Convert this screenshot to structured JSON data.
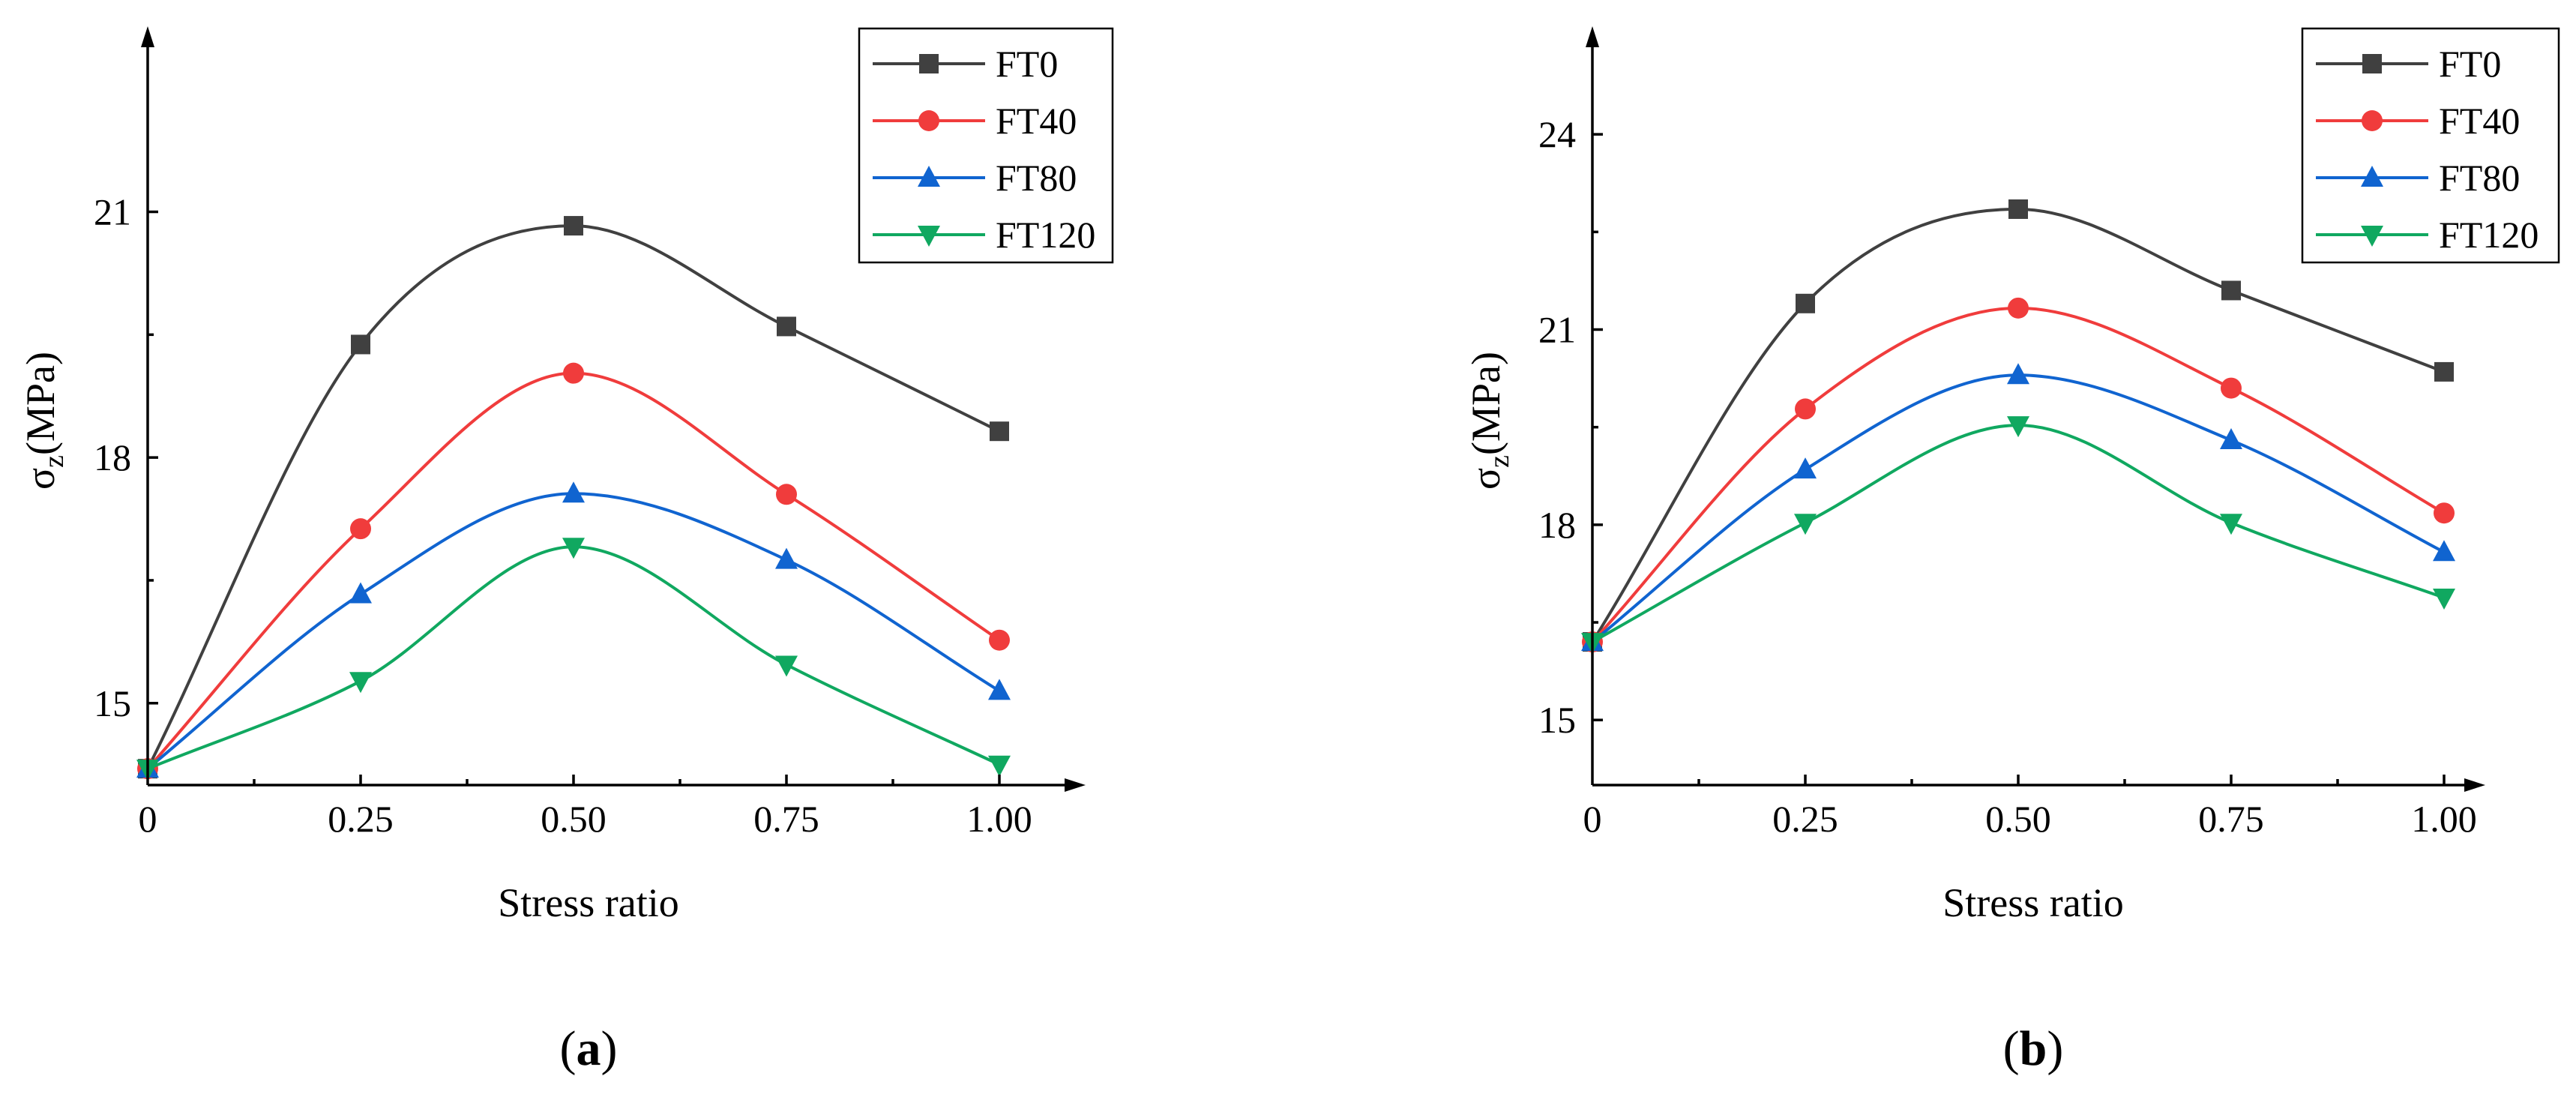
{
  "chart_data": [
    {
      "type": "line",
      "panel_label_open": "(",
      "panel_label_letter": "a",
      "panel_label_close": ")",
      "xlabel": "Stress ratio",
      "ylabel_main": "σ",
      "ylabel_sub": "z",
      "ylabel_unit": "(MPa)",
      "x": [
        0,
        0.25,
        0.5,
        0.75,
        1.0
      ],
      "xtick_labels": [
        "0",
        "0.25",
        "0.50",
        "0.75",
        "1.00"
      ],
      "yticks": [
        15,
        18,
        21
      ],
      "ylim": [
        14.0,
        22.9
      ],
      "xlim": [
        0,
        1.1
      ],
      "legend_position": "top-right",
      "series": [
        {
          "name": "FT0",
          "marker": "square",
          "color": "#404040",
          "values": [
            14.2,
            19.38,
            20.83,
            19.6,
            18.32
          ]
        },
        {
          "name": "FT40",
          "marker": "circle",
          "color": "#f03c3c",
          "values": [
            14.2,
            17.13,
            19.03,
            17.55,
            15.77
          ]
        },
        {
          "name": "FT80",
          "marker": "triangle-up",
          "color": "#1064d0",
          "values": [
            14.2,
            16.33,
            17.56,
            16.75,
            15.15
          ]
        },
        {
          "name": "FT120",
          "marker": "triangle-down",
          "color": "#10a860",
          "values": [
            14.2,
            15.27,
            16.91,
            15.47,
            14.25
          ]
        }
      ]
    },
    {
      "type": "line",
      "panel_label_open": "(",
      "panel_label_letter": "b",
      "panel_label_close": ")",
      "xlabel": "Stress ratio",
      "ylabel_main": "σ",
      "ylabel_sub": "z",
      "ylabel_unit": "(MPa)",
      "x": [
        0,
        0.25,
        0.5,
        0.75,
        1.0
      ],
      "xtick_labels": [
        "0",
        "0.25",
        "0.50",
        "0.75",
        "1.00"
      ],
      "yticks": [
        15,
        18,
        21,
        24
      ],
      "ylim": [
        14.0,
        25.2
      ],
      "xlim": [
        0,
        1.1
      ],
      "legend_position": "top-right",
      "series": [
        {
          "name": "FT0",
          "marker": "square",
          "color": "#404040",
          "values": [
            16.2,
            21.4,
            22.85,
            21.6,
            20.35
          ]
        },
        {
          "name": "FT40",
          "marker": "circle",
          "color": "#f03c3c",
          "values": [
            16.2,
            19.78,
            21.33,
            20.1,
            18.18
          ]
        },
        {
          "name": "FT80",
          "marker": "triangle-up",
          "color": "#1064d0",
          "values": [
            16.2,
            18.85,
            20.3,
            19.3,
            17.58
          ]
        },
        {
          "name": "FT120",
          "marker": "triangle-down",
          "color": "#10a860",
          "values": [
            16.2,
            18.03,
            19.53,
            18.03,
            16.88
          ]
        }
      ]
    }
  ]
}
